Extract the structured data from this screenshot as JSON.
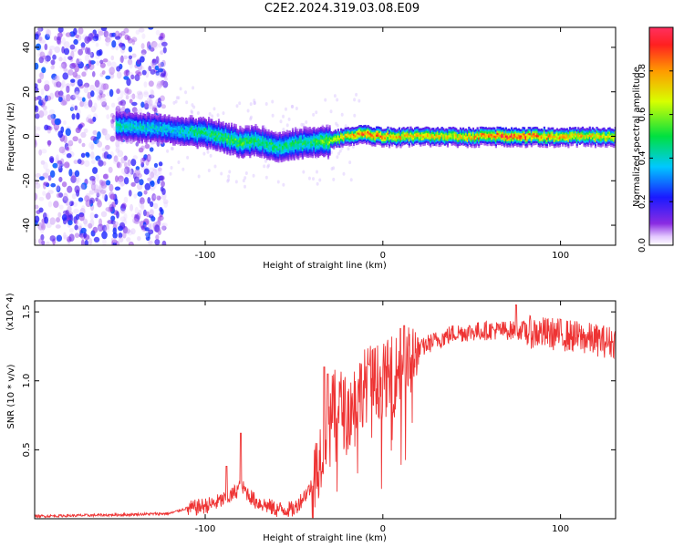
{
  "title": "C2E2.2024.319.03.08.E09",
  "colors": {
    "snr_line": "#ee3333",
    "spectrogram_low": "#6a11e8",
    "spectrogram_high": "#ff1f1f"
  },
  "chart_data": [
    {
      "type": "heatmap",
      "xlabel": "Height of straight line (km)",
      "ylabel": "Frequency (Hz)",
      "xlim": [
        -196,
        131
      ],
      "ylim": [
        -49,
        49
      ],
      "x_ticks": [
        "-100",
        "0",
        "100"
      ],
      "y_ticks": [
        "40",
        "20",
        "0",
        "-20",
        "-40"
      ],
      "colorbar": {
        "label": "Normalized spectral amplitude",
        "range": [
          0,
          1
        ],
        "ticks": [
          "0.0",
          "0.2",
          "0.4",
          "0.6",
          "0.8"
        ],
        "colormap": "rainbow (violet-blue-cyan-green-yellow-red)"
      },
      "noise_region_x": [
        -196,
        -122
      ],
      "ridge_center_freq": [
        {
          "x": -150,
          "y": 5
        },
        {
          "x": -120,
          "y": 3
        },
        {
          "x": -95,
          "y": 1
        },
        {
          "x": -80,
          "y": -3
        },
        {
          "x": -70,
          "y": -2
        },
        {
          "x": -60,
          "y": -5
        },
        {
          "x": -45,
          "y": -3
        },
        {
          "x": -30,
          "y": -2
        },
        {
          "x": -20,
          "y": 0
        },
        {
          "x": -10,
          "y": 1
        },
        {
          "x": 0,
          "y": 0
        },
        {
          "x": 20,
          "y": 0
        },
        {
          "x": 60,
          "y": 0
        },
        {
          "x": 100,
          "y": 0
        },
        {
          "x": 131,
          "y": 0
        }
      ],
      "ridge_amplitude": [
        {
          "x": -150,
          "y": 0.45
        },
        {
          "x": -120,
          "y": 0.4
        },
        {
          "x": -100,
          "y": 0.5
        },
        {
          "x": -80,
          "y": 0.55
        },
        {
          "x": -60,
          "y": 0.5
        },
        {
          "x": -40,
          "y": 0.5
        },
        {
          "x": -25,
          "y": 0.7
        },
        {
          "x": -10,
          "y": 0.9
        },
        {
          "x": 10,
          "y": 0.8
        },
        {
          "x": 40,
          "y": 0.75
        },
        {
          "x": 70,
          "y": 0.95
        },
        {
          "x": 100,
          "y": 0.8
        },
        {
          "x": 131,
          "y": 0.75
        }
      ]
    },
    {
      "type": "line",
      "xlabel": "Height of straight line (km)",
      "ylabel": "SNR (10 * v/v)",
      "y_multiplier": "(x10^4)",
      "xlim": [
        -196,
        131
      ],
      "ylim": [
        0,
        1.58
      ],
      "x_ticks": [
        "-100",
        "0",
        "100"
      ],
      "y_ticks": [
        "1.5",
        "1.0",
        "0.5"
      ],
      "series_envelope": [
        {
          "x": -196,
          "y": 0.02
        },
        {
          "x": -150,
          "y": 0.03
        },
        {
          "x": -120,
          "y": 0.04
        },
        {
          "x": -110,
          "y": 0.08
        },
        {
          "x": -95,
          "y": 0.12
        },
        {
          "x": -85,
          "y": 0.18
        },
        {
          "x": -80,
          "y": 0.25
        },
        {
          "x": -72,
          "y": 0.14
        },
        {
          "x": -60,
          "y": 0.08
        },
        {
          "x": -50,
          "y": 0.08
        },
        {
          "x": -40,
          "y": 0.25
        },
        {
          "x": -35,
          "y": 0.55
        },
        {
          "x": -30,
          "y": 0.8
        },
        {
          "x": -25,
          "y": 0.9
        },
        {
          "x": -20,
          "y": 0.8
        },
        {
          "x": -15,
          "y": 0.95
        },
        {
          "x": -8,
          "y": 1.05
        },
        {
          "x": 0,
          "y": 1.05
        },
        {
          "x": 5,
          "y": 1.1
        },
        {
          "x": 15,
          "y": 1.18
        },
        {
          "x": 25,
          "y": 1.28
        },
        {
          "x": 40,
          "y": 1.36
        },
        {
          "x": 60,
          "y": 1.38
        },
        {
          "x": 80,
          "y": 1.38
        },
        {
          "x": 100,
          "y": 1.36
        },
        {
          "x": 115,
          "y": 1.33
        },
        {
          "x": 131,
          "y": 1.3
        }
      ],
      "spikes": [
        {
          "x": -80,
          "y": 0.62
        },
        {
          "x": -88,
          "y": 0.38
        },
        {
          "x": -33,
          "y": 1.1
        },
        {
          "x": -31,
          "y": 1.05
        },
        {
          "x": -8,
          "y": 1.12
        },
        {
          "x": 10,
          "y": 1.38
        },
        {
          "x": 12,
          "y": 1.4
        },
        {
          "x": 75,
          "y": 1.55
        }
      ]
    }
  ]
}
